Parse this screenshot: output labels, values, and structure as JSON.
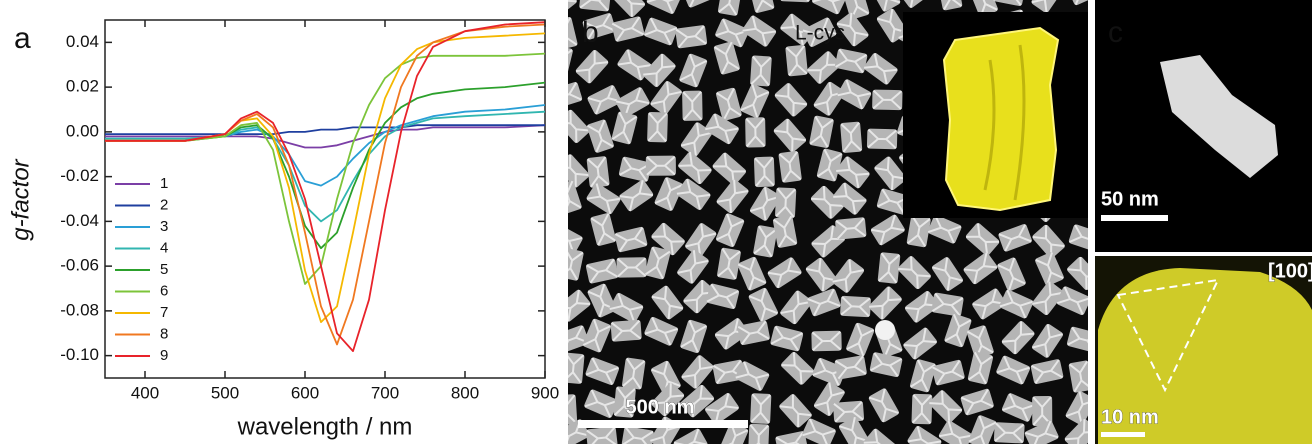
{
  "chart_data": {
    "type": "line",
    "panel_label": "a",
    "xlabel": "wavelength / nm",
    "ylabel": "g-factor",
    "xlim": [
      350,
      900
    ],
    "ylim": [
      -0.11,
      0.05
    ],
    "xticks": [
      400,
      500,
      600,
      700,
      800,
      900
    ],
    "yticks": [
      0.04,
      0.02,
      {
        "value": 0,
        "label": "0.00"
      },
      -0.02,
      -0.04,
      -0.06,
      -0.08,
      {
        "value": -0.1,
        "label": "-0.10"
      }
    ],
    "legend": "lower left",
    "x": [
      350,
      450,
      500,
      520,
      540,
      560,
      580,
      600,
      620,
      640,
      660,
      680,
      700,
      720,
      740,
      760,
      800,
      850,
      900
    ],
    "series": [
      {
        "name": "1",
        "color": "#7b3fa6",
        "values": [
          -0.002,
          -0.002,
          -0.002,
          -0.002,
          -0.002,
          -0.003,
          -0.005,
          -0.007,
          -0.007,
          -0.006,
          -0.004,
          -0.002,
          0.0,
          0.001,
          0.001,
          0.002,
          0.002,
          0.002,
          0.003
        ]
      },
      {
        "name": "2",
        "color": "#1f3f9f",
        "values": [
          -0.001,
          -0.001,
          -0.001,
          -0.001,
          -0.001,
          -0.001,
          0.0,
          0.0,
          0.001,
          0.001,
          0.002,
          0.002,
          0.002,
          0.002,
          0.003,
          0.003,
          0.003,
          0.003,
          0.003
        ]
      },
      {
        "name": "3",
        "color": "#2a9fd6",
        "values": [
          -0.003,
          -0.003,
          -0.002,
          0.0,
          0.001,
          -0.002,
          -0.01,
          -0.022,
          -0.024,
          -0.02,
          -0.012,
          -0.005,
          0.0,
          0.003,
          0.005,
          0.007,
          0.009,
          0.01,
          0.012
        ]
      },
      {
        "name": "4",
        "color": "#31b6b0",
        "values": [
          -0.003,
          -0.003,
          -0.002,
          0.001,
          0.002,
          -0.003,
          -0.015,
          -0.033,
          -0.04,
          -0.035,
          -0.022,
          -0.01,
          -0.002,
          0.002,
          0.004,
          0.006,
          0.007,
          0.008,
          0.009
        ]
      },
      {
        "name": "5",
        "color": "#2ca02c",
        "values": [
          -0.004,
          -0.004,
          -0.002,
          0.002,
          0.003,
          -0.003,
          -0.02,
          -0.042,
          -0.052,
          -0.045,
          -0.025,
          -0.008,
          0.004,
          0.011,
          0.015,
          0.017,
          0.019,
          0.02,
          0.022
        ]
      },
      {
        "name": "6",
        "color": "#7cc43a",
        "values": [
          -0.004,
          -0.004,
          -0.002,
          0.003,
          0.004,
          -0.008,
          -0.04,
          -0.068,
          -0.06,
          -0.03,
          -0.005,
          0.012,
          0.024,
          0.03,
          0.033,
          0.034,
          0.034,
          0.034,
          0.035
        ]
      },
      {
        "name": "7",
        "color": "#f5b800",
        "values": [
          -0.004,
          -0.004,
          -0.001,
          0.005,
          0.006,
          -0.002,
          -0.025,
          -0.062,
          -0.085,
          -0.078,
          -0.045,
          -0.01,
          0.015,
          0.03,
          0.037,
          0.04,
          0.042,
          0.043,
          0.044
        ]
      },
      {
        "name": "8",
        "color": "#f07820",
        "values": [
          -0.004,
          -0.004,
          -0.001,
          0.005,
          0.008,
          0.002,
          -0.015,
          -0.045,
          -0.078,
          -0.095,
          -0.075,
          -0.04,
          -0.005,
          0.02,
          0.034,
          0.04,
          0.045,
          0.047,
          0.048
        ]
      },
      {
        "name": "9",
        "color": "#e8232a",
        "values": [
          -0.004,
          -0.004,
          -0.001,
          0.006,
          0.009,
          0.004,
          -0.01,
          -0.03,
          -0.06,
          -0.09,
          -0.098,
          -0.075,
          -0.035,
          0.0,
          0.025,
          0.038,
          0.045,
          0.048,
          0.049
        ]
      }
    ]
  },
  "panel_b": {
    "label": "b",
    "inset_label": "L-cys",
    "scale_bar": "500 nm"
  },
  "panel_c": {
    "label": "c",
    "top_scale_bar": "50 nm",
    "direction": "[100]",
    "bottom_scale_bar": "10 nm"
  }
}
